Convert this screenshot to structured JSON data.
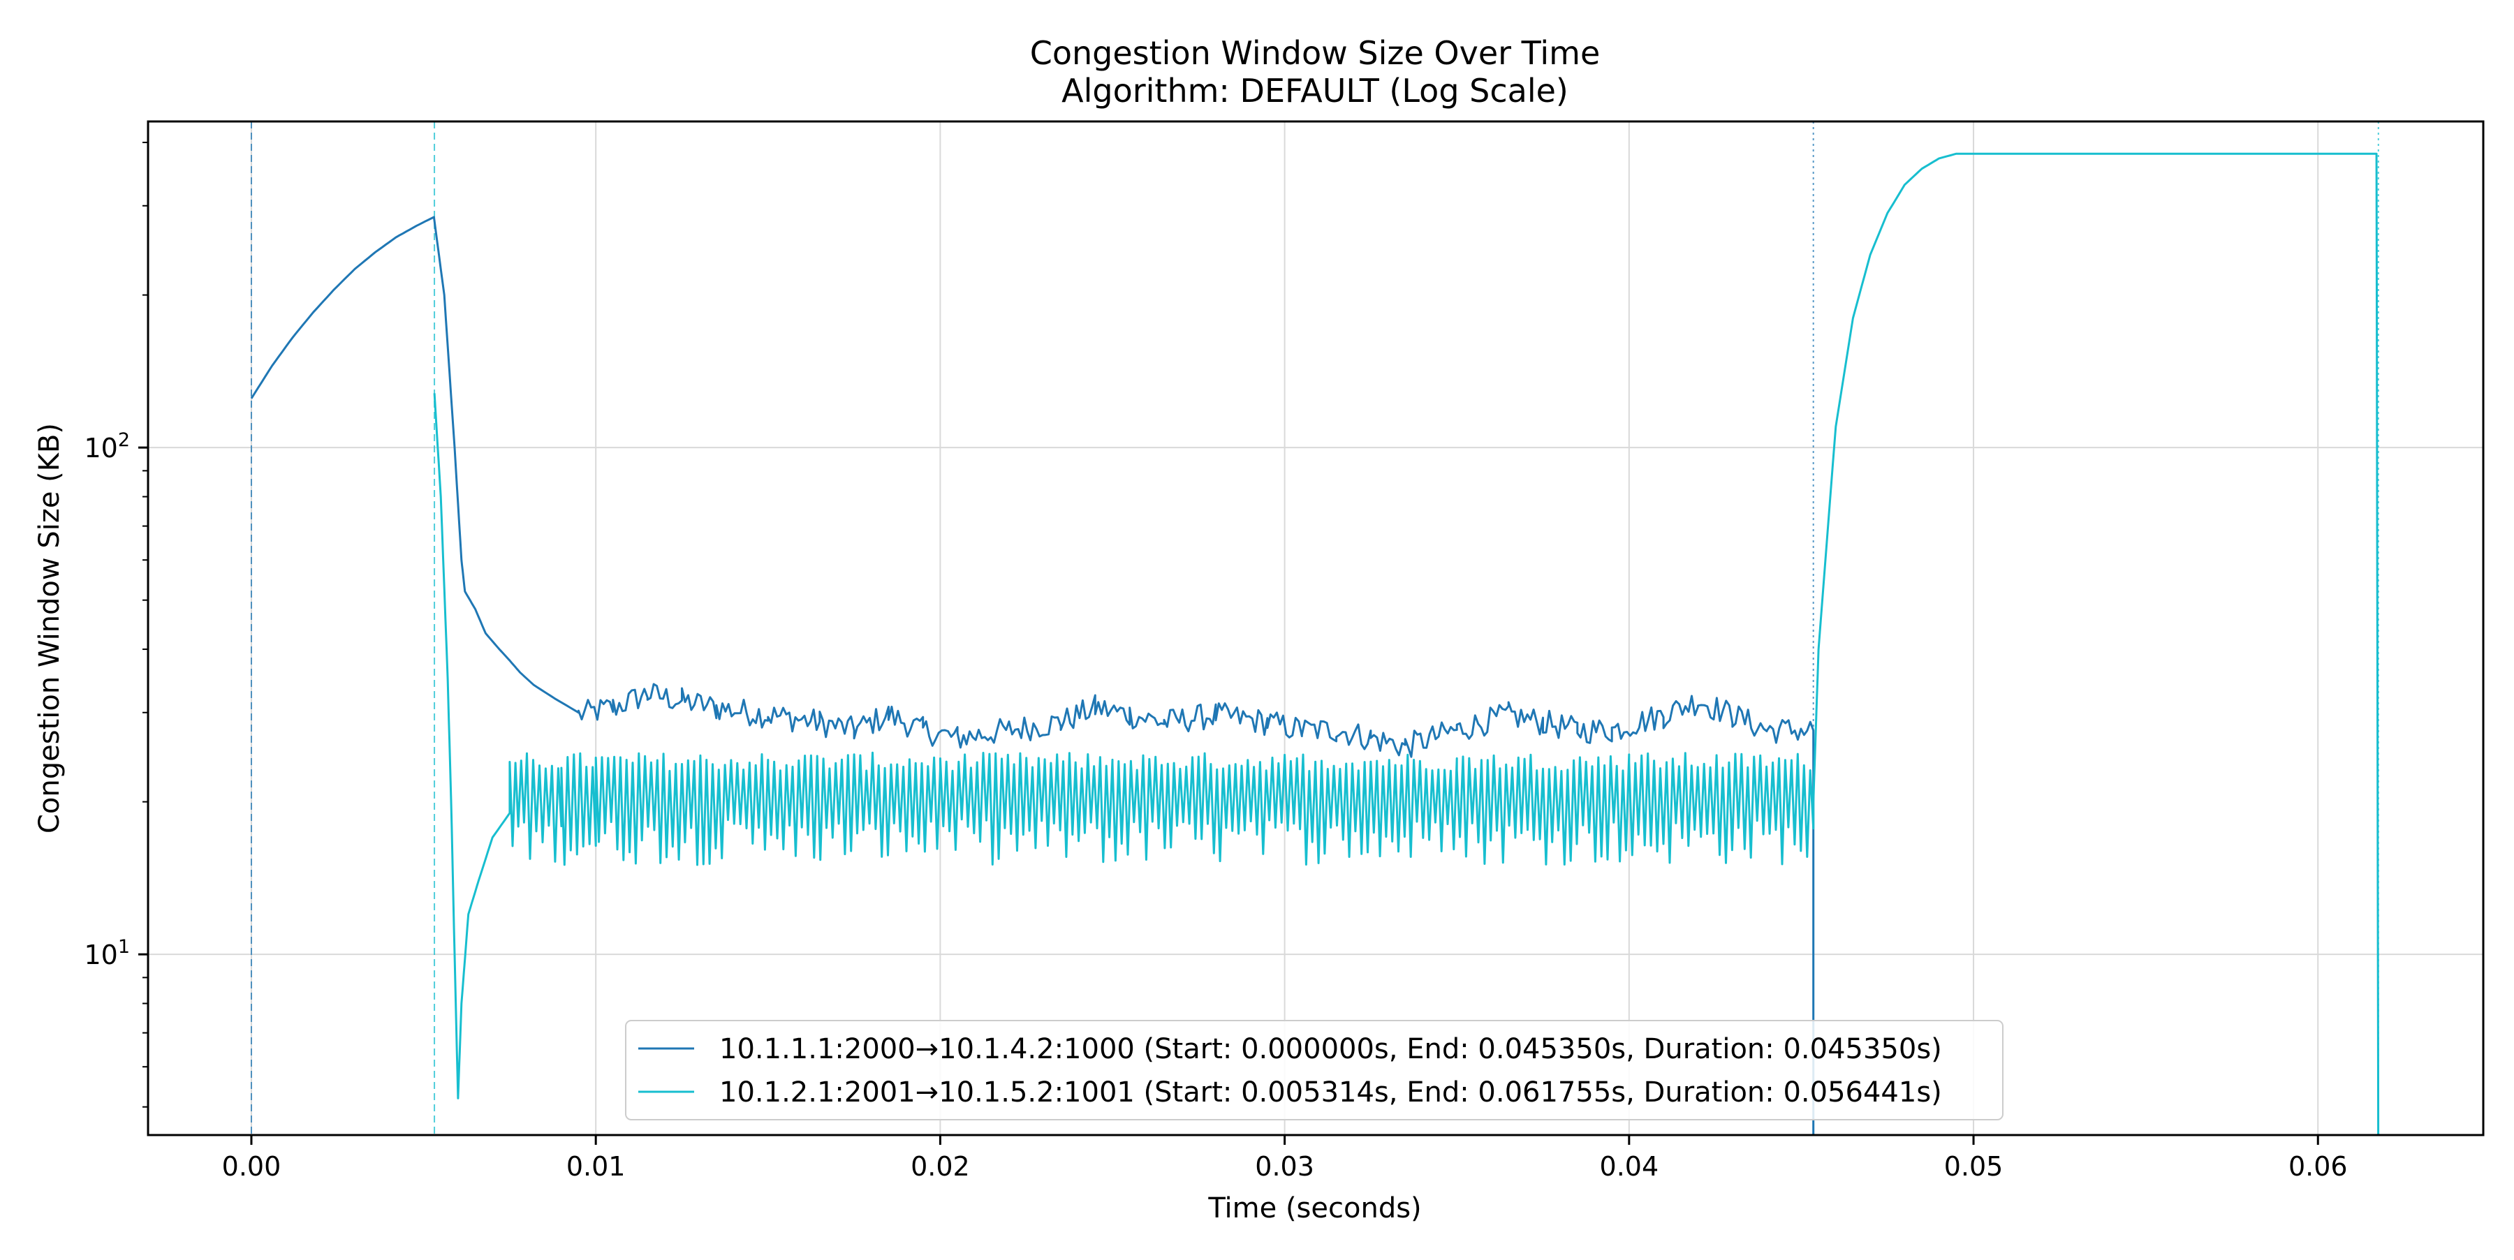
{
  "chart_data": {
    "type": "line",
    "title": "Congestion Window Size Over Time",
    "subtitle": "Algorithm: DEFAULT (Log Scale)",
    "xlabel": "Time (seconds)",
    "ylabel": "Congestion Window Size (KB)",
    "xlim": [
      -0.003,
      0.0648
    ],
    "ylim": [
      4.4,
      440
    ],
    "yscale": "log",
    "grid": true,
    "legend_position": "lower-center",
    "x_ticks": [
      {
        "value": 0.0,
        "label": "0.00"
      },
      {
        "value": 0.01,
        "label": "0.01"
      },
      {
        "value": 0.02,
        "label": "0.02"
      },
      {
        "value": 0.03,
        "label": "0.03"
      },
      {
        "value": 0.04,
        "label": "0.04"
      },
      {
        "value": 0.05,
        "label": "0.05"
      },
      {
        "value": 0.06,
        "label": "0.06"
      }
    ],
    "y_ticks": [
      {
        "value": 10,
        "base": "10",
        "exp": "1"
      },
      {
        "value": 100,
        "base": "10",
        "exp": "2"
      }
    ],
    "series": [
      {
        "name": "10.1.1.1:2000→10.1.4.2:1000 (Start: 0.000000s, End: 0.045350s, Duration: 0.045350s)",
        "color": "#1f77b4",
        "start": 0.0,
        "end": 0.04535,
        "vline_style": "dashed",
        "points": [
          [
            0.0,
            125
          ],
          [
            0.0006,
            145
          ],
          [
            0.0012,
            165
          ],
          [
            0.0018,
            185
          ],
          [
            0.0024,
            205
          ],
          [
            0.003,
            225
          ],
          [
            0.0036,
            243
          ],
          [
            0.0042,
            260
          ],
          [
            0.0048,
            274
          ],
          [
            0.0053,
            285
          ],
          [
            0.0056,
            200
          ],
          [
            0.0059,
            100
          ],
          [
            0.0061,
            60
          ],
          [
            0.0062,
            52
          ],
          [
            0.0065,
            48
          ],
          [
            0.0068,
            43
          ],
          [
            0.0072,
            40
          ],
          [
            0.0075,
            38
          ],
          [
            0.0078,
            36
          ],
          [
            0.0082,
            34
          ],
          [
            0.0088,
            32
          ],
          [
            0.0095,
            30
          ],
          [
            0.0105,
            31
          ],
          [
            0.0115,
            33
          ],
          [
            0.0125,
            32
          ],
          [
            0.0135,
            31
          ],
          [
            0.015,
            30
          ],
          [
            0.0165,
            29
          ],
          [
            0.0175,
            28
          ],
          [
            0.0185,
            30
          ],
          [
            0.0195,
            28
          ],
          [
            0.0205,
            27
          ],
          [
            0.022,
            28
          ],
          [
            0.0235,
            29
          ],
          [
            0.0245,
            31
          ],
          [
            0.0255,
            30
          ],
          [
            0.0265,
            29
          ],
          [
            0.028,
            30
          ],
          [
            0.0295,
            29
          ],
          [
            0.0305,
            28
          ],
          [
            0.0315,
            28
          ],
          [
            0.0325,
            27
          ],
          [
            0.0335,
            26
          ],
          [
            0.035,
            28
          ],
          [
            0.0365,
            30
          ],
          [
            0.0375,
            29
          ],
          [
            0.0385,
            28
          ],
          [
            0.0395,
            28
          ],
          [
            0.041,
            30
          ],
          [
            0.042,
            32
          ],
          [
            0.043,
            30
          ],
          [
            0.044,
            28
          ],
          [
            0.04535,
            28
          ],
          [
            0.04535,
            3
          ]
        ]
      },
      {
        "name": "10.1.2.1:2001→10.1.5.2:1001 (Start: 0.005314s, End: 0.061755s, Duration: 0.056441s)",
        "color": "#17becf",
        "start": 0.005314,
        "end": 0.061755,
        "vline_style": "dotted",
        "points": [
          [
            0.005314,
            128
          ],
          [
            0.0055,
            80
          ],
          [
            0.0057,
            35
          ],
          [
            0.0058,
            20
          ],
          [
            0.0059,
            10
          ],
          [
            0.006,
            5.2
          ],
          [
            0.0061,
            8
          ],
          [
            0.0063,
            12
          ],
          [
            0.0066,
            14
          ],
          [
            0.007,
            17
          ],
          [
            0.0075,
            19
          ],
          [
            0.008,
            20
          ],
          [
            0.009,
            20
          ],
          [
            0.01,
            20
          ],
          [
            0.015,
            20
          ],
          [
            0.02,
            20
          ],
          [
            0.025,
            20
          ],
          [
            0.03,
            20
          ],
          [
            0.035,
            20
          ],
          [
            0.04,
            20
          ],
          [
            0.04535,
            20
          ],
          [
            0.0455,
            40
          ],
          [
            0.046,
            110
          ],
          [
            0.0465,
            180
          ],
          [
            0.047,
            240
          ],
          [
            0.0475,
            290
          ],
          [
            0.048,
            330
          ],
          [
            0.0485,
            355
          ],
          [
            0.049,
            372
          ],
          [
            0.0495,
            380
          ],
          [
            0.0617,
            380
          ],
          [
            0.061755,
            3
          ]
        ]
      }
    ]
  }
}
